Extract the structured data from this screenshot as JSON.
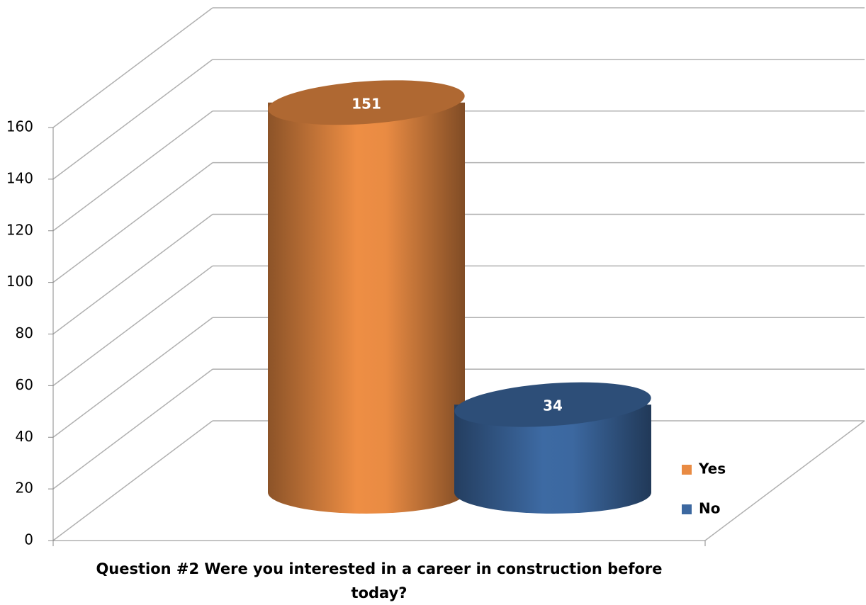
{
  "chart_data": {
    "type": "bar",
    "categories": [
      "Question #2 Were you interested in a career in construction before today?"
    ],
    "series": [
      {
        "name": "Yes",
        "color": "#e98b43",
        "values": [
          151
        ]
      },
      {
        "name": "No",
        "color": "#3c68a0",
        "values": [
          34
        ]
      }
    ],
    "ylim": [
      0,
      160
    ],
    "yticks": [
      0,
      20,
      40,
      60,
      80,
      100,
      120,
      140,
      160
    ],
    "grid": true,
    "legend": "right"
  }
}
